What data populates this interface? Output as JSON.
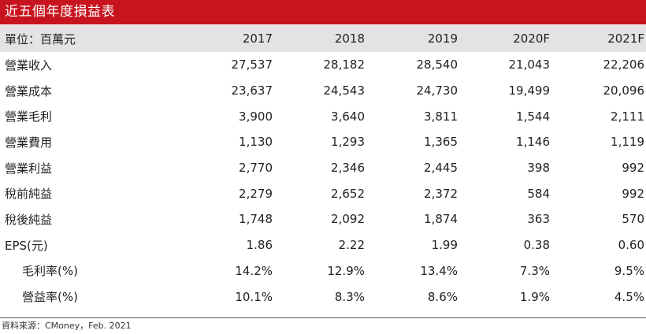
{
  "title": "近五個年度損益表",
  "table": {
    "header": {
      "unit_label": "單位：百萬元",
      "years": [
        "2017",
        "2018",
        "2019",
        "2020F",
        "2021F"
      ]
    },
    "rows": [
      {
        "label": "營業收入",
        "values": [
          "27,537",
          "28,182",
          "28,540",
          "21,043",
          "22,206"
        ]
      },
      {
        "label": "營業成本",
        "values": [
          "23,637",
          "24,543",
          "24,730",
          "19,499",
          "20,096"
        ]
      },
      {
        "label": "營業毛利",
        "values": [
          "3,900",
          "3,640",
          "3,811",
          "1,544",
          "2,111"
        ]
      },
      {
        "label": "營業費用",
        "values": [
          "1,130",
          "1,293",
          "1,365",
          "1,146",
          "1,119"
        ]
      },
      {
        "label": "營業利益",
        "values": [
          "2,770",
          "2,346",
          "2,445",
          "398",
          "992"
        ]
      },
      {
        "label": "稅前純益",
        "values": [
          "2,279",
          "2,652",
          "2,372",
          "584",
          "992"
        ]
      },
      {
        "label": "稅後純益",
        "values": [
          "1,748",
          "2,092",
          "1,874",
          "363",
          "570"
        ]
      },
      {
        "label": "EPS(元)",
        "values": [
          "1.86",
          "2.22",
          "1.99",
          "0.38",
          "0.60"
        ]
      },
      {
        "label": "毛利率(%)",
        "values": [
          "14.2%",
          "12.9%",
          "13.4%",
          "7.3%",
          "9.5%"
        ]
      },
      {
        "label": "營益率(%)",
        "values": [
          "10.1%",
          "8.3%",
          "8.6%",
          "1.9%",
          "4.5%"
        ]
      }
    ]
  },
  "source": "資料來源：CMoney，Feb. 2021",
  "colors": {
    "title_background": "#c8141e",
    "title_text": "#ffffff",
    "header_background": "#e3e3e3",
    "body_text": "#222222"
  }
}
